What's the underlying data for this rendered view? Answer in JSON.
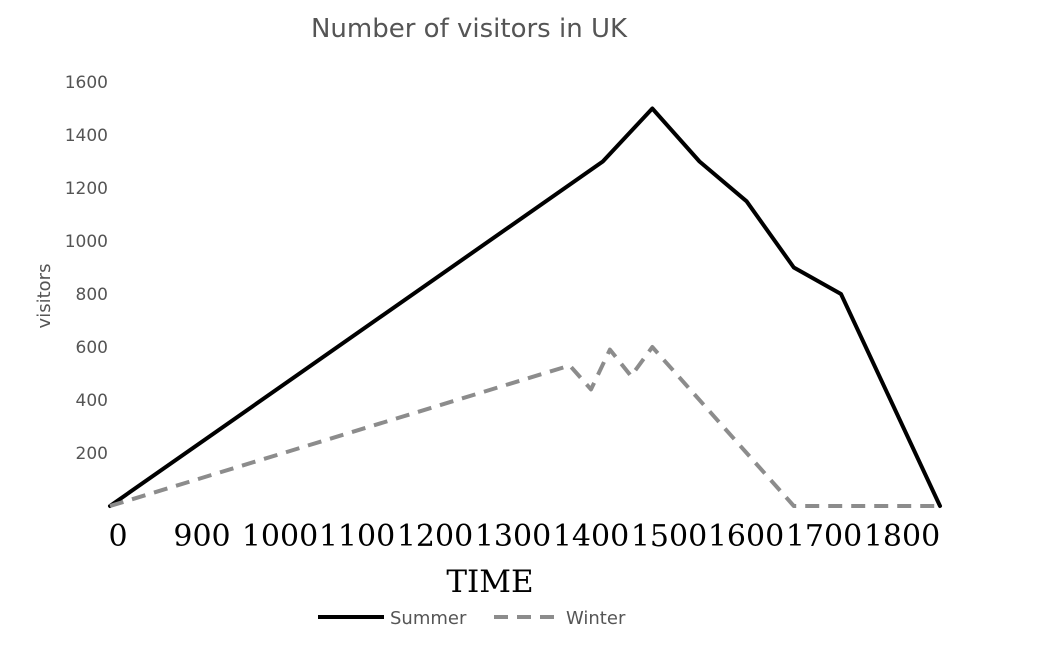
{
  "chart_data": {
    "type": "line",
    "title": "Number of visitors in UK",
    "xlabel": "TIME",
    "ylabel": "visitors",
    "x_tick_labels": [
      "0",
      "900",
      "1000",
      "1100",
      "1200",
      "1300",
      "1400",
      "1500",
      "1600",
      "1700",
      "1800"
    ],
    "y_ticks": [
      200,
      400,
      600,
      800,
      1000,
      1200,
      1400,
      1600
    ],
    "ylim": [
      0,
      1600
    ],
    "grid": false,
    "legend_position": "bottom",
    "series": [
      {
        "name": "Summer",
        "color": "#000000",
        "style": "solid",
        "points": [
          {
            "x": 0,
            "y": 0
          },
          {
            "x": 1045,
            "y": 1300
          },
          {
            "x": 1150,
            "y": 1500
          },
          {
            "x": 1250,
            "y": 1300
          },
          {
            "x": 1350,
            "y": 1150
          },
          {
            "x": 1450,
            "y": 900
          },
          {
            "x": 1550,
            "y": 800
          },
          {
            "x": 1760,
            "y": 0
          }
        ]
      },
      {
        "name": "Winter",
        "color": "#8c8c8c",
        "style": "dashed",
        "points": [
          {
            "x": 0,
            "y": 0
          },
          {
            "x": 975,
            "y": 530
          },
          {
            "x": 1020,
            "y": 440
          },
          {
            "x": 1060,
            "y": 590
          },
          {
            "x": 1105,
            "y": 490
          },
          {
            "x": 1150,
            "y": 600
          },
          {
            "x": 1450,
            "y": 0
          },
          {
            "x": 1760,
            "y": 0
          }
        ]
      }
    ]
  }
}
